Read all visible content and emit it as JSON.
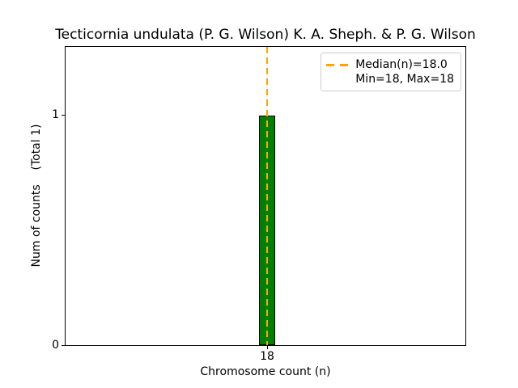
{
  "chart_data": {
    "type": "bar",
    "title": "Tecticornia undulata (P. G. Wilson) K. A. Sheph. & P. G. Wilson",
    "xlabel": "Chromosome count (n)",
    "ylabel": "Num of counts    (Total 1)",
    "categories": [
      "18"
    ],
    "values": [
      1
    ],
    "total_counts": 1,
    "x_ticks": [
      "18"
    ],
    "y_ticks": [
      "0",
      "1"
    ],
    "ylim": [
      0,
      1.3
    ],
    "grid": false,
    "bar_color": "#008000",
    "bar_edge_color": "#000000",
    "median": {
      "value": 18.0,
      "min": 18,
      "max": 18,
      "line_color": "#ffa500",
      "line_style": "dashed"
    },
    "legend": {
      "position": "upper right",
      "entries": [
        "Median(n)=18.0",
        "Min=18, Max=18"
      ]
    }
  }
}
